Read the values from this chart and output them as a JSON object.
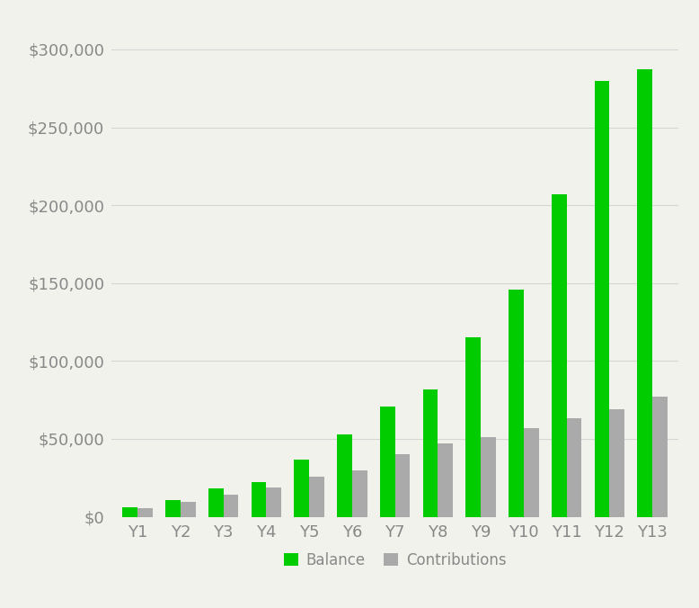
{
  "categories": [
    "Y1",
    "Y2",
    "Y3",
    "Y4",
    "Y5",
    "Y6",
    "Y7",
    "Y8",
    "Y9",
    "Y10",
    "Y11",
    "Y12",
    "Y13"
  ],
  "balance": [
    6000,
    10500,
    18000,
    22000,
    37000,
    53000,
    71000,
    82000,
    115000,
    146000,
    207000,
    280000,
    287000
  ],
  "contributions": [
    5500,
    9500,
    14000,
    19000,
    26000,
    30000,
    40000,
    47000,
    51000,
    57000,
    63000,
    69000,
    77000
  ],
  "balance_color": "#00cc00",
  "contributions_color": "#aaaaaa",
  "background_color": "#f2f2ec",
  "ylim": [
    0,
    320000
  ],
  "yticks": [
    0,
    50000,
    100000,
    150000,
    200000,
    250000,
    300000
  ],
  "legend_labels": [
    "Balance",
    "Contributions"
  ],
  "bar_width": 0.35,
  "grid_color": "#d5d5d5",
  "tick_color": "#888888",
  "label_fontsize": 13,
  "legend_fontsize": 12
}
